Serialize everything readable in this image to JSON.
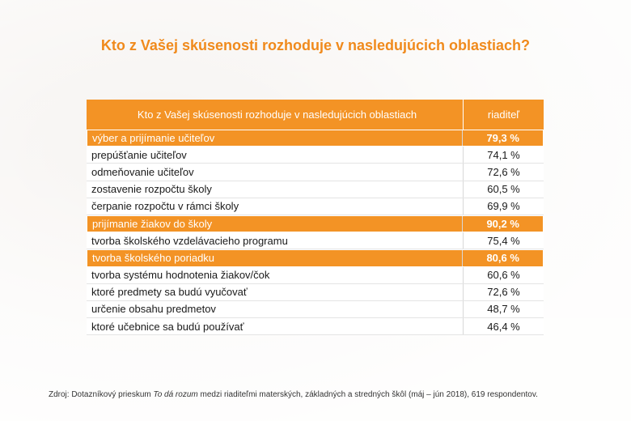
{
  "title": "Kto z Vašej skúsenosti rozhoduje v nasledujúcich oblastiach?",
  "table": {
    "header": [
      "Kto z Vašej skúsenosti rozhoduje v nasledujúcich oblastiach",
      "riaditeľ"
    ],
    "rows": [
      {
        "label": "výber a prijímanie učiteľov",
        "value": "79,3 %",
        "highlight": true
      },
      {
        "label": "prepúšťanie učiteľov",
        "value": "74,1 %",
        "highlight": false
      },
      {
        "label": "odmeňovanie učiteľov",
        "value": "72,6 %",
        "highlight": false
      },
      {
        "label": "zostavenie rozpočtu školy",
        "value": "60,5 %",
        "highlight": false
      },
      {
        "label": "čerpanie rozpočtu v rámci školy",
        "value": "69,9 %",
        "highlight": false
      },
      {
        "label": "prijímanie žiakov do školy",
        "value": "90,2 %",
        "highlight": true
      },
      {
        "label": "tvorba školského vzdelávacieho programu",
        "value": "75,4 %",
        "highlight": false
      },
      {
        "label": "tvorba školského poriadku",
        "value": "80,6 %",
        "highlight": true
      },
      {
        "label": "tvorba systému hodnotenia žiakov/čok",
        "value": "60,6 %",
        "highlight": false
      },
      {
        "label": "ktoré predmety sa budú vyučovať",
        "value": "72,6 %",
        "highlight": false
      },
      {
        "label": "určenie obsahu predmetov",
        "value": "48,7 %",
        "highlight": false
      },
      {
        "label": "ktoré učebnice sa budú používať",
        "value": "46,4 %",
        "highlight": false
      }
    ]
  },
  "source": {
    "prefix": "Zdroj:  Dotazníkový prieskum ",
    "italic": "To dá rozum",
    "suffix": " medzi riaditeľmi materských, základných a stredných škôl (máj – jún 2018), 619 respondentov."
  }
}
